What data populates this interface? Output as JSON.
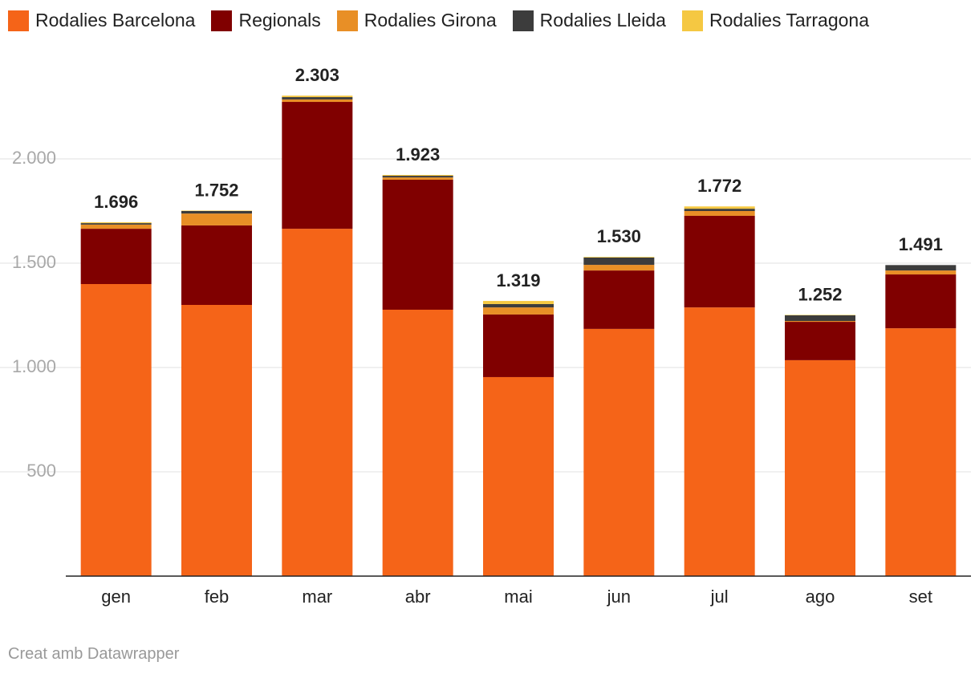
{
  "chart_data": {
    "type": "stacked_bar",
    "categories": [
      "gen",
      "feb",
      "mar",
      "abr",
      "mai",
      "jun",
      "jul",
      "ago",
      "set"
    ],
    "series": [
      {
        "name": "Rodalies Barcelona",
        "color": "#f56418",
        "values": [
          1400,
          1300,
          1665,
          1277,
          954,
          1185,
          1288,
          1035,
          1188
        ]
      },
      {
        "name": "Regionals",
        "color": "#800000",
        "values": [
          265,
          381,
          608,
          623,
          300,
          280,
          439,
          184,
          258
        ]
      },
      {
        "name": "Rodalies Girona",
        "color": "#e88f26",
        "values": [
          20,
          57,
          12,
          11,
          34,
          27,
          23,
          4,
          19
        ]
      },
      {
        "name": "Rodalies Lleida",
        "color": "#3c3c3c",
        "values": [
          7,
          12,
          11,
          8,
          16,
          35,
          11,
          27,
          26
        ]
      },
      {
        "name": "Rodalies Tarragona",
        "color": "#f5c842",
        "values": [
          4,
          2,
          7,
          4,
          15,
          3,
          11,
          2,
          0
        ]
      }
    ],
    "totals": {
      "values": [
        1696,
        1752,
        2303,
        1923,
        1319,
        1530,
        1772,
        1252,
        1491
      ],
      "value_labels": [
        "1.696",
        "1.752",
        "2.303",
        "1.923",
        "1.319",
        "1.530",
        "1.772",
        "1.252",
        "1.491"
      ]
    },
    "ylim": [
      0,
      2400
    ],
    "yticks": [
      500,
      {
        "value": 1000,
        "label": "1.000"
      },
      {
        "value": 1500,
        "label": "1.500"
      },
      {
        "value": 2000,
        "label": "2.000"
      }
    ],
    "grid": true,
    "legend": "top",
    "footer": "Creat amb Datawrapper"
  }
}
